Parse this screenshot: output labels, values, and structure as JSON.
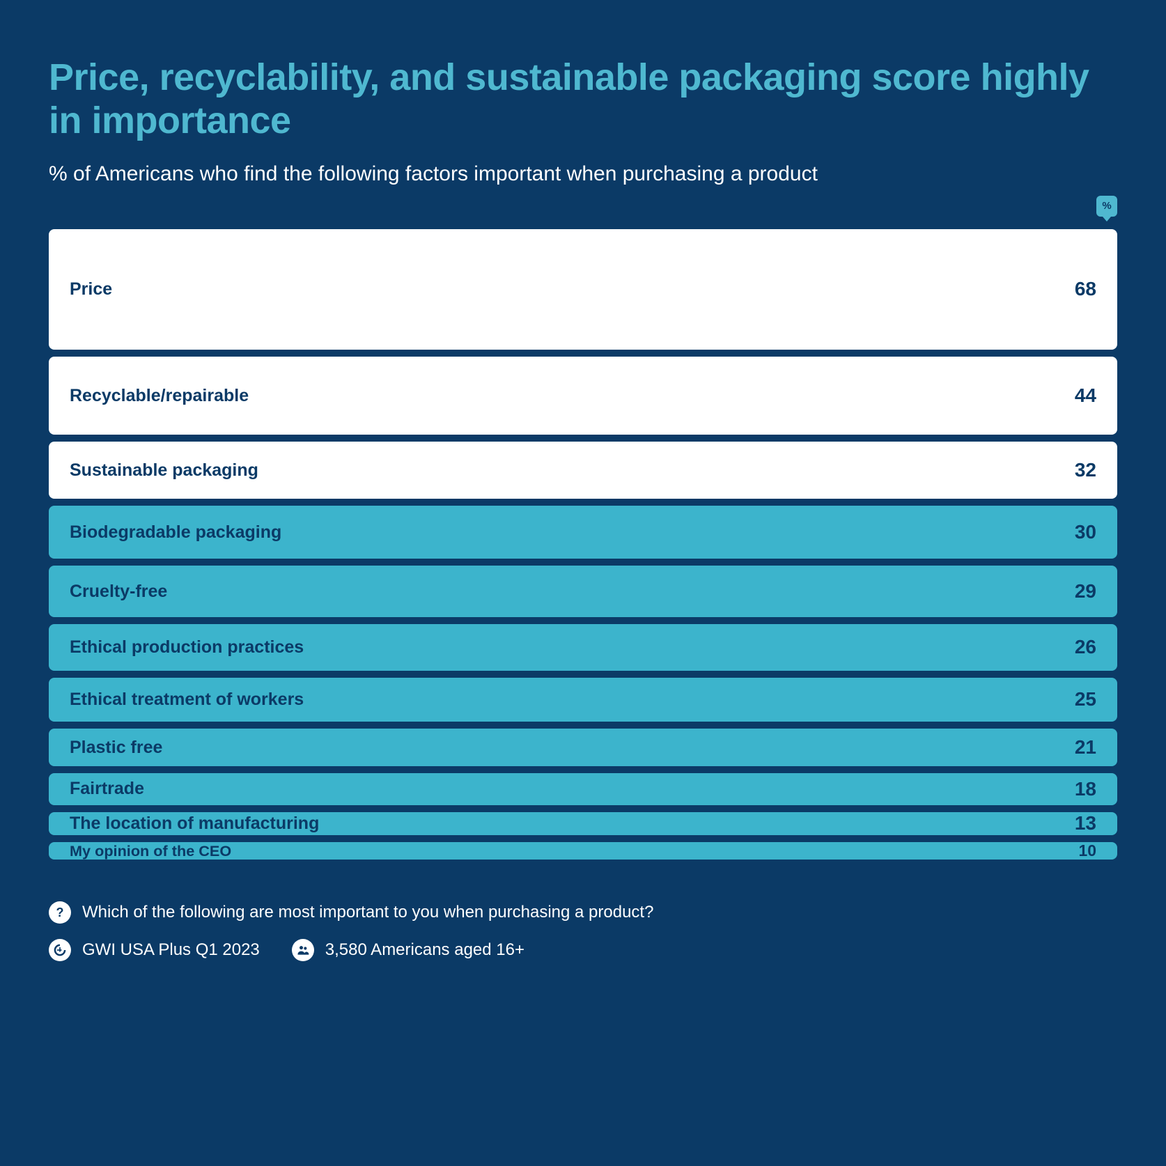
{
  "header": {
    "title": "Price, recyclability, and sustainable packaging score highly in importance",
    "subtitle": "% of Americans who find the following factors important when purchasing a product",
    "marker_label": "%"
  },
  "chart": {
    "type": "bar",
    "background_color": "#0b3a66",
    "bar_colors": {
      "highlight": "#ffffff",
      "default": "#3cb4cc"
    },
    "text_color": "#0b3a66",
    "bar_radius": 8,
    "gap": 10,
    "label_fontsize": 25,
    "value_fontsize": 28,
    "height_scale": 2.55,
    "bars": [
      {
        "label": "Price",
        "value": 68,
        "highlight": true
      },
      {
        "label": "Recyclable/repairable",
        "value": 44,
        "highlight": true
      },
      {
        "label": "Sustainable packaging",
        "value": 32,
        "highlight": true
      },
      {
        "label": "Biodegradable packaging",
        "value": 30,
        "highlight": false
      },
      {
        "label": "Cruelty-free",
        "value": 29,
        "highlight": false
      },
      {
        "label": "Ethical production practices",
        "value": 26,
        "highlight": false
      },
      {
        "label": "Ethical treatment of workers",
        "value": 25,
        "highlight": false
      },
      {
        "label": "Plastic free",
        "value": 21,
        "highlight": false
      },
      {
        "label": "Fairtrade",
        "value": 18,
        "highlight": false
      },
      {
        "label": "The location of manufacturing",
        "value": 13,
        "highlight": false
      },
      {
        "label": "My opinion of the CEO",
        "value": 10,
        "highlight": false
      }
    ]
  },
  "footer": {
    "question": "Which of the following are most important to you when purchasing a product?",
    "source": "GWI USA Plus Q1 2023",
    "sample": "3,580 Americans aged 16+"
  }
}
